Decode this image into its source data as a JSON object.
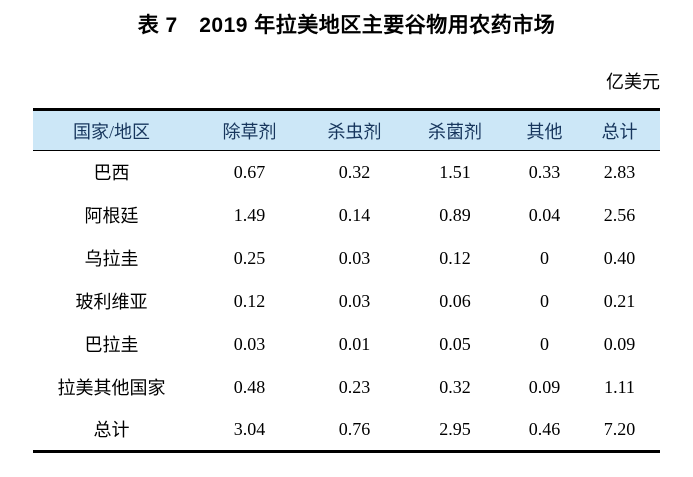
{
  "title": "表 7　2019 年拉美地区主要谷物用农药市场",
  "unit_label": "亿美元",
  "colors": {
    "header_bg": "#cce7f7",
    "header_text": "#17365d",
    "border": "#000000",
    "body_text": "#000000"
  },
  "chart_data": {
    "type": "table",
    "title": "表 7　2019 年拉美地区主要谷物用农药市场",
    "unit": "亿美元",
    "headers": [
      "国家/地区",
      "除草剂",
      "杀虫剂",
      "杀菌剂",
      "其他",
      "总计"
    ],
    "rows": [
      [
        "巴西",
        "0.67",
        "0.32",
        "1.51",
        "0.33",
        "2.83"
      ],
      [
        "阿根廷",
        "1.49",
        "0.14",
        "0.89",
        "0.04",
        "2.56"
      ],
      [
        "乌拉圭",
        "0.25",
        "0.03",
        "0.12",
        "0",
        "0.40"
      ],
      [
        "玻利维亚",
        "0.12",
        "0.03",
        "0.06",
        "0",
        "0.21"
      ],
      [
        "巴拉圭",
        "0.03",
        "0.01",
        "0.05",
        "0",
        "0.09"
      ],
      [
        "拉美其他国家",
        "0.48",
        "0.23",
        "0.32",
        "0.09",
        "1.11"
      ],
      [
        "总计",
        "3.04",
        "0.76",
        "2.95",
        "0.46",
        "7.20"
      ]
    ]
  }
}
